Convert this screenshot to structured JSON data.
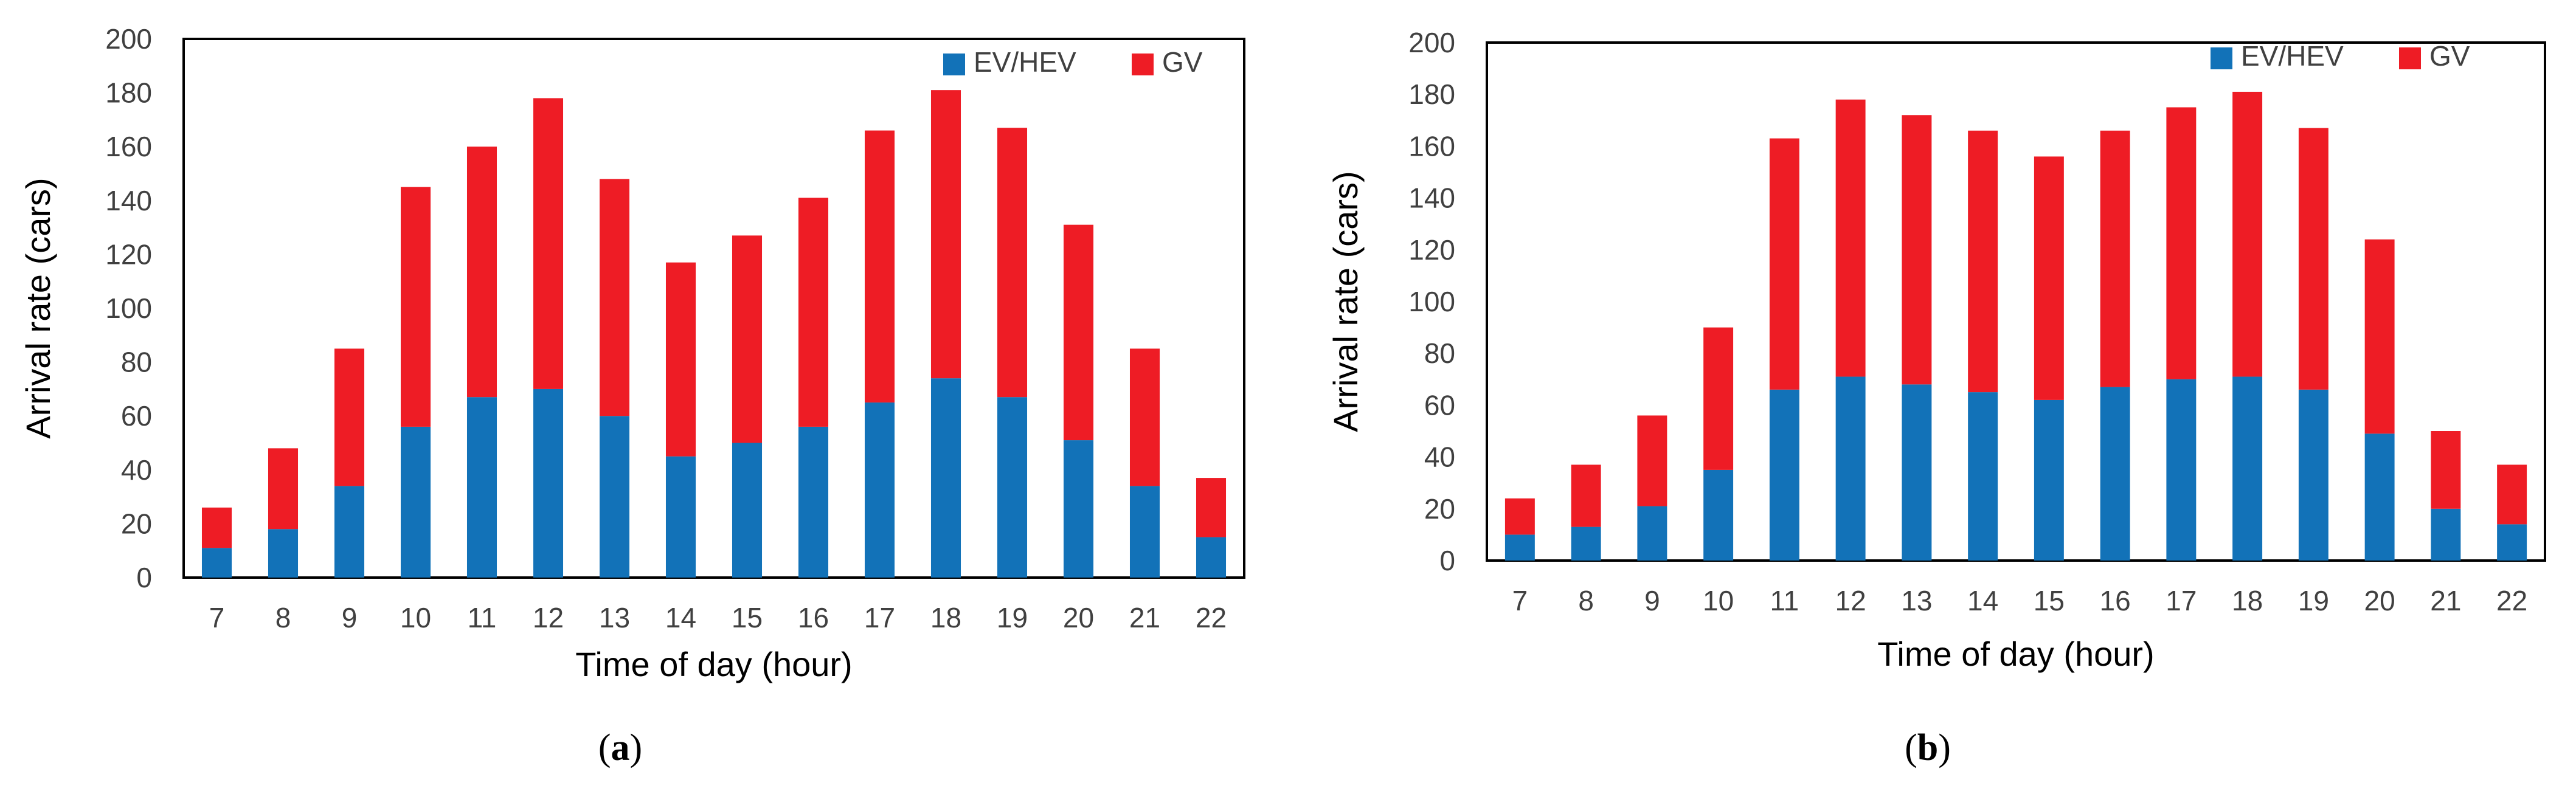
{
  "colors": {
    "ev": "#1272b8",
    "gv": "#ee1c25",
    "axis": "#000000",
    "text": "#404040"
  },
  "chart_data": [
    {
      "type": "bar",
      "stacked": true,
      "panel_label": "a",
      "caption_open": "(",
      "caption_close": ")",
      "categories": [
        "7",
        "8",
        "9",
        "10",
        "11",
        "12",
        "13",
        "14",
        "15",
        "16",
        "17",
        "18",
        "19",
        "20",
        "21",
        "22"
      ],
      "series": [
        {
          "name": "EV/HEV",
          "color_key": "ev",
          "values": [
            11,
            18,
            34,
            56,
            67,
            70,
            60,
            45,
            50,
            56,
            65,
            74,
            67,
            51,
            34,
            15
          ]
        },
        {
          "name": "GV",
          "color_key": "gv",
          "values": [
            15,
            30,
            51,
            89,
            93,
            108,
            88,
            72,
            77,
            85,
            101,
            107,
            100,
            80,
            51,
            22
          ]
        }
      ],
      "xlabel": "Time of day (hour)",
      "ylabel": "Arrival rate (cars)",
      "ylim": [
        0,
        200
      ],
      "yticks": [
        0,
        20,
        40,
        60,
        80,
        100,
        120,
        140,
        160,
        180,
        200
      ],
      "grid": false,
      "legend": "top-right"
    },
    {
      "type": "bar",
      "stacked": true,
      "panel_label": "b",
      "caption_open": "(",
      "caption_close": ")",
      "categories": [
        "7",
        "8",
        "9",
        "10",
        "11",
        "12",
        "13",
        "14",
        "15",
        "16",
        "17",
        "18",
        "19",
        "20",
        "21",
        "22"
      ],
      "series": [
        {
          "name": "EV/HEV",
          "color_key": "ev",
          "values": [
            10,
            13,
            21,
            35,
            66,
            71,
            68,
            65,
            62,
            67,
            70,
            71,
            66,
            49,
            20,
            14
          ]
        },
        {
          "name": "GV",
          "color_key": "gv",
          "values": [
            14,
            24,
            35,
            55,
            97,
            107,
            104,
            101,
            94,
            99,
            105,
            110,
            101,
            75,
            30,
            23
          ]
        }
      ],
      "xlabel": "Time of day (hour)",
      "ylabel": "Arrival rate (cars)",
      "ylim": [
        0,
        200
      ],
      "yticks": [
        0,
        20,
        40,
        60,
        80,
        100,
        120,
        140,
        160,
        180,
        200
      ],
      "grid": false,
      "legend": "top-right"
    }
  ]
}
